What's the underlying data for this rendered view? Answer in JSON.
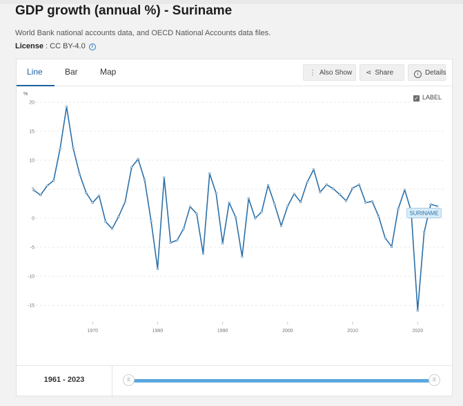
{
  "page": {
    "title": "GDP growth (annual %) - Suriname",
    "source": "World Bank national accounts data, and OECD National Accounts data files.",
    "license_label": "License",
    "license_value": ": CC BY-4.0"
  },
  "tabs": [
    "Line",
    "Bar",
    "Map"
  ],
  "active_tab": "Line",
  "actions": {
    "also_show": "Also Show",
    "share": "Share",
    "details": "Details"
  },
  "label_toggle": {
    "text": "LABEL",
    "checked": true
  },
  "footer": {
    "range_text": "1961 - 2023"
  },
  "slider": {
    "start_fraction": 0,
    "end_fraction": 1
  },
  "colors": {
    "line": "#2a6fa8",
    "accent": "#1a5f9e",
    "slider": "#5aa7df"
  },
  "chart_data": {
    "type": "line",
    "title": "",
    "xlabel": "",
    "ylabel": "%",
    "xlim": [
      1960,
      2024
    ],
    "ylim": [
      -17,
      20
    ],
    "y_ticks": [
      20,
      15,
      10,
      5,
      0,
      -5,
      -10,
      -15
    ],
    "x_ticks": [
      1970,
      1980,
      1990,
      2000,
      2010,
      2020
    ],
    "grid": true,
    "series": [
      {
        "name": "SURINAME",
        "x": [
          1961,
          1962,
          1963,
          1964,
          1965,
          1966,
          1967,
          1968,
          1969,
          1970,
          1971,
          1972,
          1973,
          1974,
          1975,
          1976,
          1977,
          1978,
          1979,
          1980,
          1981,
          1982,
          1983,
          1984,
          1985,
          1986,
          1987,
          1988,
          1989,
          1990,
          1991,
          1992,
          1993,
          1994,
          1995,
          1996,
          1997,
          1998,
          1999,
          2000,
          2001,
          2002,
          2003,
          2004,
          2005,
          2006,
          2007,
          2008,
          2009,
          2010,
          2011,
          2012,
          2013,
          2014,
          2015,
          2016,
          2017,
          2018,
          2019,
          2020,
          2021,
          2022,
          2023
        ],
        "values": [
          4.8,
          4.0,
          5.6,
          6.5,
          12.0,
          19.2,
          12.1,
          7.6,
          4.4,
          2.7,
          3.9,
          -0.6,
          -1.8,
          0.3,
          2.8,
          8.8,
          10.2,
          6.6,
          -0.5,
          -8.7,
          7.0,
          -4.2,
          -3.8,
          -1.8,
          2.0,
          0.8,
          -6.1,
          7.7,
          4.3,
          -4.3,
          2.7,
          0.2,
          -6.6,
          3.4,
          0.0,
          1.1,
          5.7,
          2.4,
          -1.3,
          2.1,
          4.2,
          2.8,
          6.2,
          8.4,
          4.5,
          5.8,
          5.1,
          4.1,
          3.0,
          5.2,
          5.8,
          2.7,
          2.9,
          0.3,
          -3.4,
          -4.9,
          1.6,
          4.9,
          1.2,
          -15.9,
          -2.4,
          2.4,
          2.1
        ]
      }
    ],
    "end_label": "SURINAME"
  }
}
